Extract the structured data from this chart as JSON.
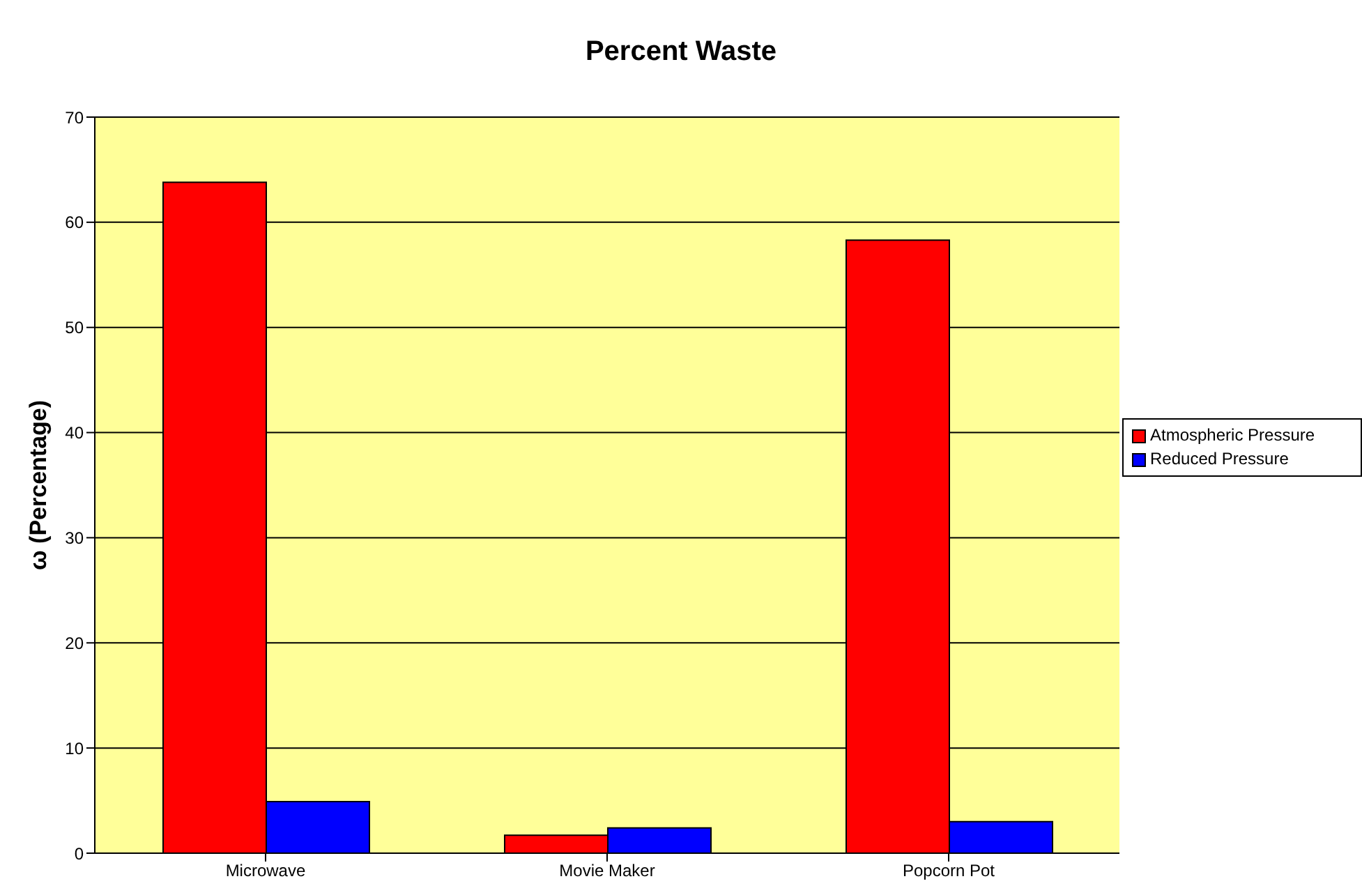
{
  "chart_data": {
    "type": "bar",
    "title": "Percent Waste",
    "ylabel": "ω (Percentage)",
    "categories": [
      "Microwave",
      "Movie Maker",
      "Popcorn Pot"
    ],
    "series": [
      {
        "name": "Atmospheric Pressure",
        "color": "#ff0000",
        "values": [
          63.8,
          1.7,
          58.3
        ]
      },
      {
        "name": "Reduced Pressure",
        "color": "#0000ff",
        "values": [
          4.9,
          2.4,
          3.0
        ]
      }
    ],
    "ylim": [
      0,
      70
    ],
    "yticks": [
      0,
      10,
      20,
      30,
      40,
      50,
      60,
      70
    ],
    "grid": "y",
    "legend": "right"
  }
}
